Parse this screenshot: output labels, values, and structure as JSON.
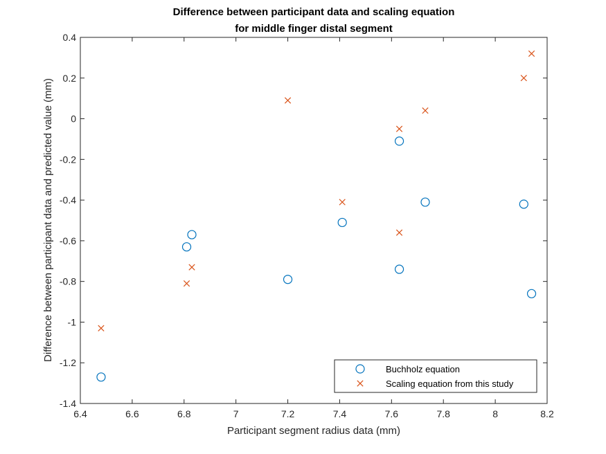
{
  "chart_data": {
    "type": "scatter",
    "title": [
      "Difference between participant data and scaling equation",
      "for middle finger distal segment"
    ],
    "xlabel": "Participant segment radius data (mm)",
    "ylabel": "Difference between participant data and predicted value (mm)",
    "xlim": [
      6.4,
      8.2
    ],
    "ylim": [
      -1.4,
      0.4
    ],
    "xticks": [
      6.4,
      6.6,
      6.8,
      7,
      7.2,
      7.4,
      7.6,
      7.8,
      8,
      8.2
    ],
    "xtick_labels": [
      "6.4",
      "6.6",
      "6.8",
      "7",
      "7.2",
      "7.4",
      "7.6",
      "7.8",
      "8",
      "8.2"
    ],
    "yticks": [
      0.4,
      0.2,
      0,
      -0.2,
      -0.4,
      -0.6,
      -0.8,
      -1,
      -1.2,
      -1.4
    ],
    "ytick_labels": [
      "0.4",
      "0.2",
      "0",
      "-0.2",
      "-0.4",
      "-0.6",
      "-0.8",
      "-1",
      "-1.2",
      "-1.4"
    ],
    "grid": false,
    "legend_position": "bottom-right",
    "series": [
      {
        "name": "Buchholz equation",
        "marker": "circle",
        "color": "#0072BD",
        "points": [
          {
            "x": 6.48,
            "y": -1.27
          },
          {
            "x": 6.81,
            "y": -0.63
          },
          {
            "x": 6.83,
            "y": -0.57
          },
          {
            "x": 7.2,
            "y": -0.79
          },
          {
            "x": 7.41,
            "y": -0.51
          },
          {
            "x": 7.63,
            "y": -0.74
          },
          {
            "x": 7.63,
            "y": -0.11
          },
          {
            "x": 7.73,
            "y": -0.41
          },
          {
            "x": 8.11,
            "y": -0.42
          },
          {
            "x": 8.14,
            "y": -0.86
          }
        ]
      },
      {
        "name": "Scaling equation from this study",
        "marker": "x",
        "color": "#D95319",
        "points": [
          {
            "x": 6.48,
            "y": -1.03
          },
          {
            "x": 6.81,
            "y": -0.81
          },
          {
            "x": 6.83,
            "y": -0.73
          },
          {
            "x": 7.2,
            "y": 0.09
          },
          {
            "x": 7.41,
            "y": -0.41
          },
          {
            "x": 7.63,
            "y": -0.56
          },
          {
            "x": 7.63,
            "y": -0.05
          },
          {
            "x": 7.73,
            "y": 0.04
          },
          {
            "x": 8.11,
            "y": 0.2
          },
          {
            "x": 8.14,
            "y": 0.32
          }
        ]
      }
    ]
  }
}
